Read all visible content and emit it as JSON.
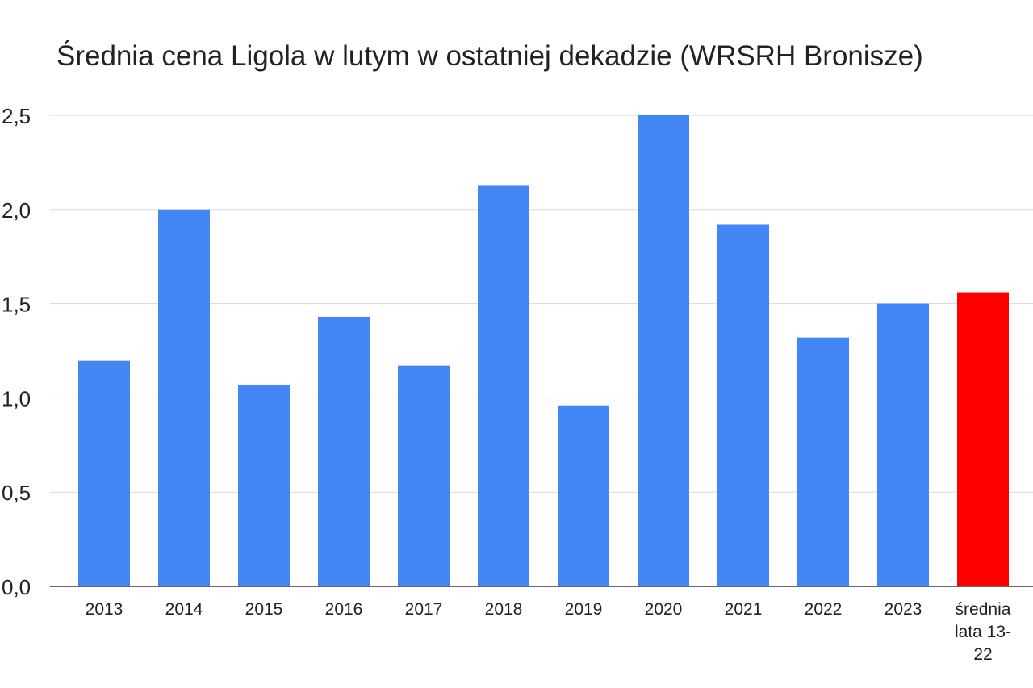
{
  "chart_data": {
    "type": "bar",
    "title": "Średnia cena Ligola w lutym w ostatniej dekadzie (WRSRH Bronisze)",
    "xlabel": "",
    "ylabel": "",
    "ylim": [
      0,
      2.5
    ],
    "yticks": [
      "0,0",
      "0,5",
      "1,0",
      "1,5",
      "2,0",
      "2,5"
    ],
    "ytick_values": [
      0,
      0.5,
      1.0,
      1.5,
      2.0,
      2.5
    ],
    "grid": true,
    "legend": "none",
    "categories": [
      [
        "2013"
      ],
      [
        "2014"
      ],
      [
        "2015"
      ],
      [
        "2016"
      ],
      [
        "2017"
      ],
      [
        "2018"
      ],
      [
        "2019"
      ],
      [
        "2020"
      ],
      [
        "2021"
      ],
      [
        "2022"
      ],
      [
        "2023"
      ],
      [
        "średnia",
        "lata 13-",
        "22"
      ]
    ],
    "values": [
      1.2,
      2.0,
      1.07,
      1.43,
      1.17,
      2.13,
      0.96,
      2.5,
      1.92,
      1.32,
      1.5,
      1.56
    ],
    "colors": {
      "bar": "#4285f4",
      "highlight": "#ff0000",
      "grid": "#d9d9d9",
      "axis": "#333333"
    },
    "highlight_index": 11
  }
}
